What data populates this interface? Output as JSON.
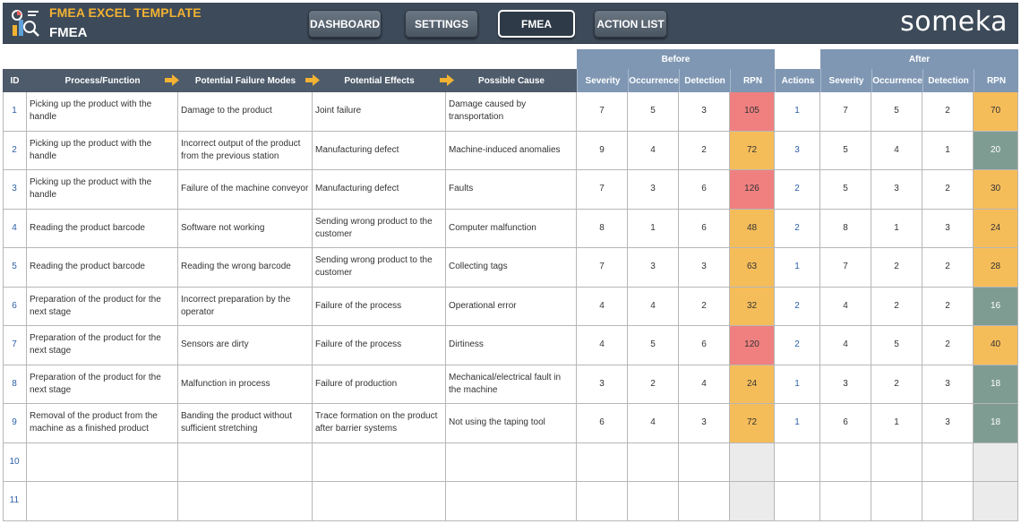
{
  "header": {
    "app_title": "FMEA EXCEL TEMPLATE",
    "sheet_title": "FMEA",
    "brand": "someka",
    "nav": [
      {
        "label": "DASHBOARD",
        "active": false
      },
      {
        "label": "SETTINGS",
        "active": false
      },
      {
        "label": "FMEA",
        "active": true
      },
      {
        "label": "ACTION LIST",
        "active": false
      }
    ]
  },
  "groups": {
    "before": "Before",
    "after": "After"
  },
  "columns": {
    "id": "ID",
    "process": "Process/Function",
    "failure_modes": "Potential Failure Modes",
    "effects": "Potential Effects",
    "cause": "Possible Cause",
    "severity": "Severity",
    "occurrence": "Occurrence",
    "detection": "Detection",
    "rpn": "RPN",
    "actions": "Actions",
    "after_severity": "Severity",
    "after_occurrence": "Occurrence",
    "after_detection": "Detection",
    "after_rpn": "RPN"
  },
  "colors": {
    "header_bg": "#3d4a59",
    "accent": "#f2b233",
    "rpn_high": "#f08080",
    "rpn_medium": "#f5bd5a",
    "rpn_low": "#7f9c93"
  },
  "rows": [
    {
      "id": "1",
      "process": "Picking up the product with the handle",
      "failure": "Damage to the product",
      "effect": "Joint failure",
      "cause": "Damage caused by transportation",
      "sev": "7",
      "occ": "5",
      "det": "3",
      "rpn": "105",
      "rpn_level": "high",
      "actions": "1",
      "a_sev": "7",
      "a_occ": "5",
      "a_det": "2",
      "a_rpn": "70",
      "a_level": "medium"
    },
    {
      "id": "2",
      "process": "Picking up the product with the handle",
      "failure": "Incorrect output of the product from the previous station",
      "effect": "Manufacturing defect",
      "cause": "Machine-induced anomalies",
      "sev": "9",
      "occ": "4",
      "det": "2",
      "rpn": "72",
      "rpn_level": "medium",
      "actions": "3",
      "a_sev": "5",
      "a_occ": "4",
      "a_det": "1",
      "a_rpn": "20",
      "a_level": "low"
    },
    {
      "id": "3",
      "process": "Picking up the product with the handle",
      "failure": "Failure of the machine conveyor",
      "effect": "Manufacturing defect",
      "cause": "Faults",
      "sev": "7",
      "occ": "3",
      "det": "6",
      "rpn": "126",
      "rpn_level": "high",
      "actions": "2",
      "a_sev": "5",
      "a_occ": "3",
      "a_det": "2",
      "a_rpn": "30",
      "a_level": "medium"
    },
    {
      "id": "4",
      "process": "Reading the product barcode",
      "failure": "Software not working",
      "effect": "Sending wrong product to the customer",
      "cause": "Computer malfunction",
      "sev": "8",
      "occ": "1",
      "det": "6",
      "rpn": "48",
      "rpn_level": "medium",
      "actions": "2",
      "a_sev": "8",
      "a_occ": "1",
      "a_det": "3",
      "a_rpn": "24",
      "a_level": "medium"
    },
    {
      "id": "5",
      "process": "Reading the product barcode",
      "failure": "Reading the wrong barcode",
      "effect": "Sending wrong product to the customer",
      "cause": "Collecting tags",
      "sev": "7",
      "occ": "3",
      "det": "3",
      "rpn": "63",
      "rpn_level": "medium",
      "actions": "1",
      "a_sev": "7",
      "a_occ": "2",
      "a_det": "2",
      "a_rpn": "28",
      "a_level": "medium"
    },
    {
      "id": "6",
      "process": "Preparation of the product for the next stage",
      "failure": "Incorrect preparation by the operator",
      "effect": "Failure of the process",
      "cause": "Operational error",
      "sev": "4",
      "occ": "4",
      "det": "2",
      "rpn": "32",
      "rpn_level": "medium",
      "actions": "2",
      "a_sev": "4",
      "a_occ": "2",
      "a_det": "2",
      "a_rpn": "16",
      "a_level": "low"
    },
    {
      "id": "7",
      "process": "Preparation of the product for the next stage",
      "failure": "Sensors are dirty",
      "effect": "Failure of the process",
      "cause": "Dirtiness",
      "sev": "4",
      "occ": "5",
      "det": "6",
      "rpn": "120",
      "rpn_level": "high",
      "actions": "2",
      "a_sev": "4",
      "a_occ": "5",
      "a_det": "2",
      "a_rpn": "40",
      "a_level": "medium"
    },
    {
      "id": "8",
      "process": "Preparation of the product for the next stage",
      "failure": "Malfunction in process",
      "effect": "Failure of production",
      "cause": "Mechanical/electrical fault in the machine",
      "sev": "3",
      "occ": "2",
      "det": "4",
      "rpn": "24",
      "rpn_level": "medium",
      "actions": "1",
      "a_sev": "3",
      "a_occ": "2",
      "a_det": "3",
      "a_rpn": "18",
      "a_level": "low"
    },
    {
      "id": "9",
      "process": "Removal of the product from the machine as a finished product",
      "failure": "Banding the product without sufficient stretching",
      "effect": "Trace formation on the product after barrier systems",
      "cause": "Not using the taping tool",
      "sev": "6",
      "occ": "4",
      "det": "3",
      "rpn": "72",
      "rpn_level": "medium",
      "actions": "1",
      "a_sev": "6",
      "a_occ": "1",
      "a_det": "3",
      "a_rpn": "18",
      "a_level": "low"
    },
    {
      "id": "10",
      "process": "",
      "failure": "",
      "effect": "",
      "cause": "",
      "sev": "",
      "occ": "",
      "det": "",
      "rpn": "",
      "rpn_level": "empty",
      "actions": "",
      "a_sev": "",
      "a_occ": "",
      "a_det": "",
      "a_rpn": "",
      "a_level": "empty"
    },
    {
      "id": "11",
      "process": "",
      "failure": "",
      "effect": "",
      "cause": "",
      "sev": "",
      "occ": "",
      "det": "",
      "rpn": "",
      "rpn_level": "empty",
      "actions": "",
      "a_sev": "",
      "a_occ": "",
      "a_det": "",
      "a_rpn": "",
      "a_level": "empty"
    }
  ]
}
